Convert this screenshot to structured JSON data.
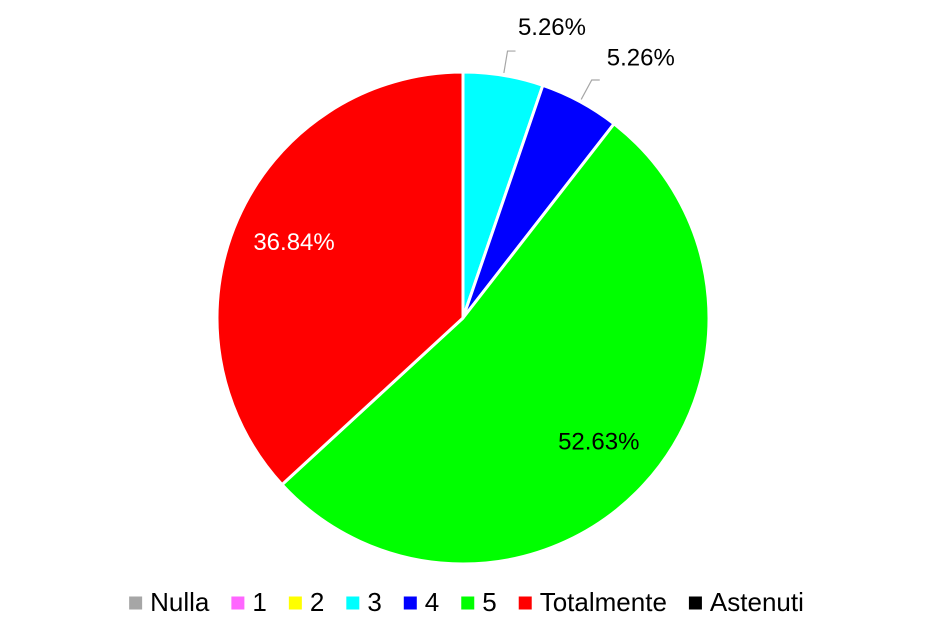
{
  "chart_data": {
    "type": "pie",
    "categories": [
      "Nulla",
      "1",
      "2",
      "3",
      "4",
      "5",
      "Totalmente",
      "Astenuti"
    ],
    "values": [
      0,
      0,
      0,
      5.26,
      5.26,
      52.63,
      36.84,
      0
    ],
    "value_labels": [
      null,
      null,
      null,
      "5.26%",
      "5.26%",
      "52.63%",
      "36.84%",
      null
    ],
    "colors": [
      "#a6a6a6",
      "#ff66ff",
      "#ffff00",
      "#00ffff",
      "#0000ff",
      "#00ff00",
      "#ff0000",
      "#000000"
    ],
    "legend": "bottom"
  }
}
